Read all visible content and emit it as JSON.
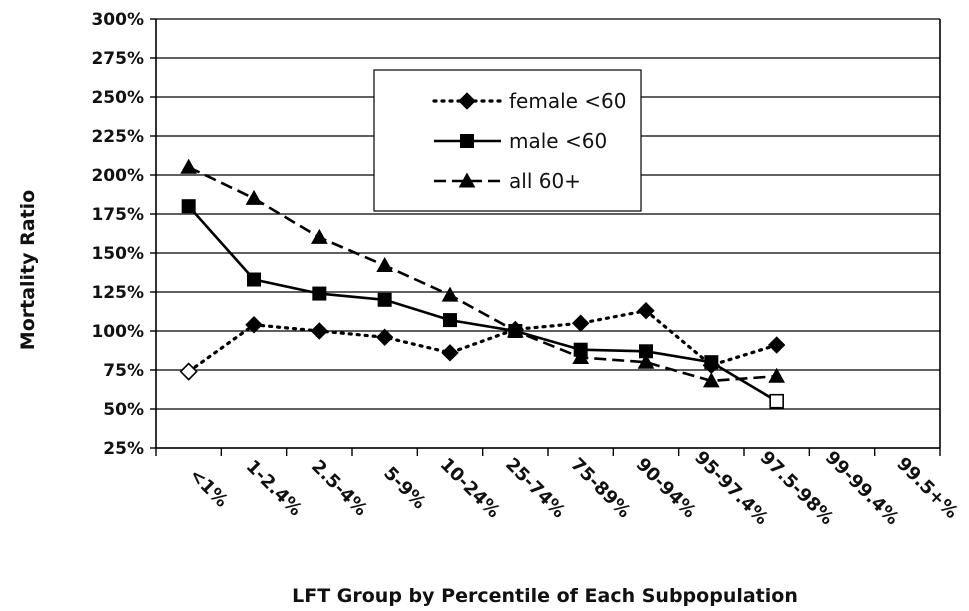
{
  "chart_data": {
    "type": "line",
    "title": "",
    "xlabel": "LFT Group by Percentile of Each Subpopulation",
    "ylabel": "Mortality Ratio",
    "categories": [
      "<1%",
      "1-2.4%",
      "2.5-4%",
      "5-9%",
      "10-24%",
      "25-74%",
      "75-89%",
      "90-94%",
      "95-97.4%",
      "97.5-98%",
      "99-99.4%",
      "99.5+%"
    ],
    "yticks": [
      "25%",
      "50%",
      "75%",
      "100%",
      "125%",
      "150%",
      "175%",
      "200%",
      "225%",
      "250%",
      "275%",
      "300%"
    ],
    "ylim": [
      25,
      300
    ],
    "grid": true,
    "legend_position": "top-center",
    "series": [
      {
        "name": "female <60",
        "values": [
          74,
          104,
          100,
          96,
          86,
          101,
          105,
          113,
          78,
          91,
          null,
          null
        ],
        "line_style": "dotted",
        "marker": "diamond",
        "hollow_points": [
          0
        ]
      },
      {
        "name": "male <60",
        "values": [
          180,
          133,
          124,
          120,
          107,
          100,
          88,
          87,
          80,
          55,
          null,
          null
        ],
        "line_style": "solid",
        "marker": "square",
        "hollow_points": [
          9
        ]
      },
      {
        "name": "all 60+",
        "values": [
          205,
          185,
          160,
          142,
          123,
          100,
          83,
          80,
          68,
          71,
          null,
          null
        ],
        "line_style": "dashed",
        "marker": "triangle",
        "hollow_points": []
      }
    ],
    "colors": {
      "line": "#000000",
      "grid": "#000000",
      "background": "#ffffff"
    }
  }
}
